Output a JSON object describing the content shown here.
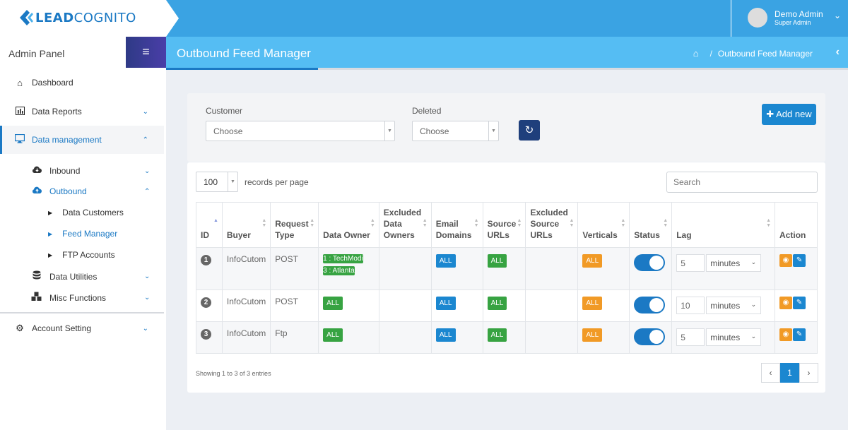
{
  "brand": {
    "lead": "LEAD",
    "cog": "COGNITO"
  },
  "user": {
    "name": "Demo Admin",
    "role": "Super Admin"
  },
  "sidebar": {
    "panel_title": "Admin Panel",
    "menu_icon": "≡",
    "items": [
      {
        "label": "Dashboard",
        "icon": "home-icon"
      },
      {
        "label": "Data Reports",
        "icon": "bar-chart-icon"
      },
      {
        "label": "Data management",
        "icon": "monitor-icon"
      },
      {
        "label": "Account Setting",
        "icon": "gear-icon"
      }
    ],
    "sub_items": [
      {
        "label": "Inbound",
        "icon": "cloud-download-icon"
      },
      {
        "label": "Outbound",
        "icon": "cloud-upload-icon"
      },
      {
        "label": "Data Utilities",
        "icon": "database-icon"
      },
      {
        "label": "Misc Functions",
        "icon": "cubes-icon"
      }
    ],
    "outbound_items": [
      {
        "label": "Data Customers"
      },
      {
        "label": "Feed Manager"
      },
      {
        "label": "FTP Accounts"
      }
    ]
  },
  "page": {
    "title": "Outbound Feed Manager",
    "breadcrumb_current": "Outbound Feed Manager",
    "breadcrumb_sep": "/"
  },
  "filters": {
    "customer_label": "Customer",
    "customer_value": "Choose",
    "deleted_label": "Deleted",
    "deleted_value": "Choose",
    "add_label": "Add new"
  },
  "table_controls": {
    "page_length": "100",
    "records_label": "records per page",
    "search_placeholder": "Search"
  },
  "columns": {
    "id": "ID",
    "buyer": "Buyer",
    "request_type_1": "Request",
    "request_type_2": "Type",
    "data_owner": "Data Owner",
    "excl_owners_1": "Excluded",
    "excl_owners_2": "Data",
    "excl_owners_3": "Owners",
    "email_domains_1": "Email",
    "email_domains_2": "Domains",
    "source_urls_1": "Source",
    "source_urls_2": "URLs",
    "excl_source_1": "Excluded",
    "excl_source_2": "Source",
    "excl_source_3": "URLs",
    "verticals": "Verticals",
    "status": "Status",
    "lag": "Lag",
    "action": "Action"
  },
  "rows": [
    {
      "id": "1",
      "buyer": "InfoCutom",
      "type": "POST",
      "owner_1": "1 : TechModi",
      "owner_2": "3 : Atlanta",
      "email": "ALL",
      "source": "ALL",
      "verticals": "ALL",
      "lag": "5",
      "unit": "minutes"
    },
    {
      "id": "2",
      "buyer": "InfoCutom",
      "type": "POST",
      "owner_1": "ALL",
      "email": "ALL",
      "source": "ALL",
      "verticals": "ALL",
      "lag": "10",
      "unit": "minutes"
    },
    {
      "id": "3",
      "buyer": "InfoCutom",
      "type": "Ftp",
      "owner_1": "ALL",
      "email": "ALL",
      "source": "ALL",
      "verticals": "ALL",
      "lag": "5",
      "unit": "minutes"
    }
  ],
  "footer": {
    "showing": "Showing 1 to 3 of 3 entries",
    "current_page": "1"
  },
  "colors": {
    "primary": "#1b87d0",
    "header": "#3aa3e3",
    "success": "#37a342",
    "warning": "#f19a26"
  }
}
